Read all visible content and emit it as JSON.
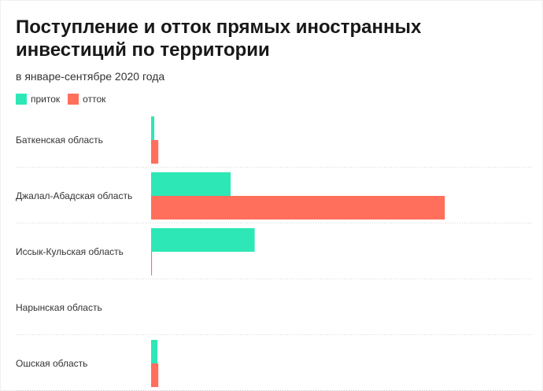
{
  "title": "Поступление и отток прямых иностранных инвестиций по территории",
  "subtitle": "в январе-сентябре 2020 года",
  "colors": {
    "inflow": "#2de8b6",
    "outflow": "#ff6f5b"
  },
  "chart_data": {
    "type": "bar",
    "orientation": "horizontal",
    "title": "Поступление и отток прямых иностранных инвестиций по территории",
    "subtitle": "в январе-сентябре 2020 года",
    "legend_position": "top-left",
    "grid": false,
    "categories": [
      "Баткенская область",
      "Джалал-Абадская область",
      "Иссык-Кульская область",
      "Нарынская область",
      "Ошская область"
    ],
    "series": [
      {
        "name": "приток",
        "color": "#2de8b6",
        "values": [
          1.1,
          27.5,
          35.8,
          0,
          2.2
        ]
      },
      {
        "name": "отток",
        "color": "#ff6f5b",
        "values": [
          2.5,
          101.5,
          0.3,
          0,
          2.5
        ]
      }
    ],
    "xlim": [
      0,
      130
    ]
  }
}
